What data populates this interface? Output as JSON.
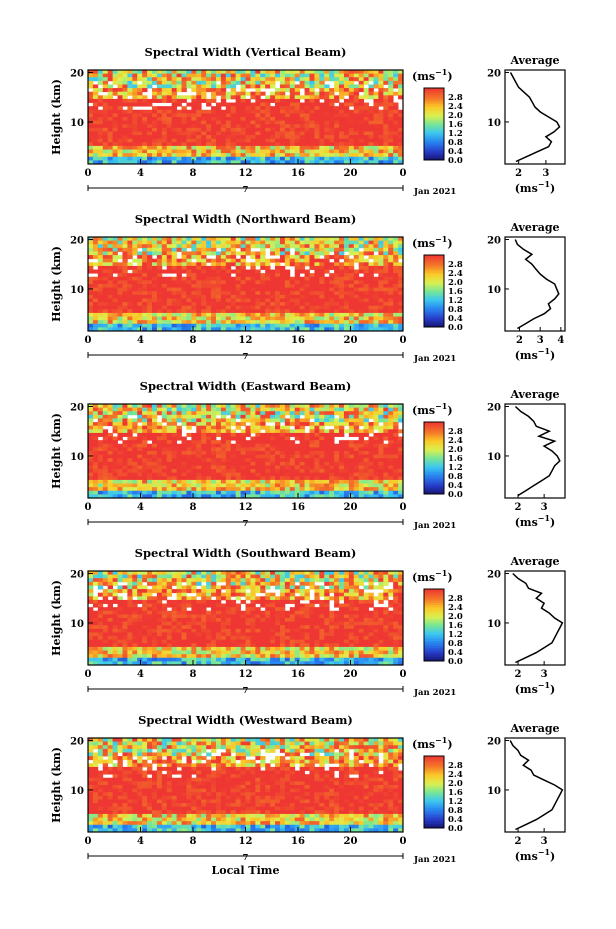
{
  "figure": {
    "ylabel": "Height (km)",
    "xlabel": "Local Time",
    "unit_label": "(ms",
    "unit_exp": "−1",
    "date_label": "Jan 2021",
    "day_label": "7",
    "avg_title": "Average"
  },
  "chart_data": [
    {
      "type": "heatmap",
      "title": "Spectral Width (Vertical Beam)",
      "xlabel": "Local Time",
      "ylabel": "Height (km)",
      "xlim": [
        0,
        24
      ],
      "ylim": [
        1.5,
        20.5
      ],
      "x_ticks": [
        "0",
        "4",
        "8",
        "12",
        "16",
        "20",
        "0"
      ],
      "y_ticks": [
        "10",
        "20"
      ],
      "colorbar": {
        "label": "(ms−1)",
        "range": [
          0,
          3.2
        ],
        "ticks": [
          "0.0",
          "0.4",
          "0.8",
          "1.2",
          "1.6",
          "2.0",
          "2.4",
          "2.8"
        ]
      },
      "average_profile": {
        "title": "Average",
        "xlabel": "(ms−1)",
        "x_ticks": [
          "2",
          "3"
        ],
        "xlim": [
          1.5,
          3.7
        ],
        "points": [
          [
            1.9,
            2
          ],
          [
            2.3,
            3
          ],
          [
            2.7,
            4
          ],
          [
            3.1,
            5
          ],
          [
            3.2,
            6
          ],
          [
            3.0,
            7
          ],
          [
            3.3,
            8
          ],
          [
            3.5,
            9
          ],
          [
            3.4,
            10
          ],
          [
            3.1,
            11
          ],
          [
            2.8,
            12
          ],
          [
            2.6,
            13
          ],
          [
            2.5,
            14
          ],
          [
            2.4,
            15
          ],
          [
            2.2,
            16
          ],
          [
            2.0,
            17
          ],
          [
            1.9,
            18
          ],
          [
            1.8,
            19
          ],
          [
            1.7,
            20
          ]
        ]
      }
    },
    {
      "type": "heatmap",
      "title": "Spectral Width (Northward Beam)",
      "xlabel": "Local Time",
      "ylabel": "Height (km)",
      "xlim": [
        0,
        24
      ],
      "ylim": [
        1.5,
        20.5
      ],
      "x_ticks": [
        "0",
        "4",
        "8",
        "12",
        "16",
        "20",
        "0"
      ],
      "y_ticks": [
        "10",
        "20"
      ],
      "colorbar": {
        "label": "(ms−1)",
        "range": [
          0,
          3.2
        ],
        "ticks": [
          "0.0",
          "0.4",
          "0.8",
          "1.2",
          "1.6",
          "2.0",
          "2.4",
          "2.8"
        ]
      },
      "average_profile": {
        "title": "Average",
        "xlabel": "(ms−1)",
        "x_ticks": [
          "2",
          "3",
          "4"
        ],
        "xlim": [
          1.3,
          4.2
        ],
        "points": [
          [
            1.9,
            2
          ],
          [
            2.3,
            3
          ],
          [
            2.7,
            4
          ],
          [
            3.2,
            5
          ],
          [
            3.5,
            6
          ],
          [
            3.4,
            7
          ],
          [
            3.7,
            8
          ],
          [
            3.9,
            9
          ],
          [
            3.8,
            10
          ],
          [
            3.7,
            11
          ],
          [
            3.3,
            12
          ],
          [
            3.0,
            13
          ],
          [
            2.8,
            14
          ],
          [
            2.6,
            15
          ],
          [
            2.3,
            16
          ],
          [
            2.6,
            17
          ],
          [
            2.2,
            18
          ],
          [
            1.9,
            19
          ],
          [
            1.8,
            20
          ]
        ]
      }
    },
    {
      "type": "heatmap",
      "title": "Spectral Width (Eastward Beam)",
      "xlabel": "Local Time",
      "ylabel": "Height (km)",
      "xlim": [
        0,
        24
      ],
      "ylim": [
        1.5,
        20.5
      ],
      "x_ticks": [
        "0",
        "4",
        "8",
        "12",
        "16",
        "20",
        "0"
      ],
      "y_ticks": [
        "10",
        "20"
      ],
      "colorbar": {
        "label": "(ms−1)",
        "range": [
          0,
          3.2
        ],
        "ticks": [
          "0.0",
          "0.4",
          "0.8",
          "1.2",
          "1.6",
          "2.0",
          "2.4",
          "2.8"
        ]
      },
      "average_profile": {
        "title": "Average",
        "xlabel": "(ms−1)",
        "x_ticks": [
          "2",
          "3"
        ],
        "xlim": [
          1.5,
          3.8
        ],
        "points": [
          [
            2.0,
            2
          ],
          [
            2.3,
            3
          ],
          [
            2.6,
            4
          ],
          [
            2.9,
            5
          ],
          [
            3.2,
            6
          ],
          [
            3.3,
            7
          ],
          [
            3.4,
            8
          ],
          [
            3.6,
            9
          ],
          [
            3.5,
            10
          ],
          [
            3.3,
            11
          ],
          [
            3.0,
            12
          ],
          [
            3.4,
            13
          ],
          [
            2.8,
            14
          ],
          [
            3.2,
            15
          ],
          [
            2.7,
            16
          ],
          [
            2.6,
            17
          ],
          [
            2.4,
            18
          ],
          [
            2.1,
            19
          ],
          [
            1.9,
            20
          ]
        ]
      }
    },
    {
      "type": "heatmap",
      "title": "Spectral Width (Southward Beam)",
      "xlabel": "Local Time",
      "ylabel": "Height (km)",
      "xlim": [
        0,
        24
      ],
      "ylim": [
        1.5,
        20.5
      ],
      "x_ticks": [
        "0",
        "4",
        "8",
        "12",
        "16",
        "20",
        "0"
      ],
      "y_ticks": [
        "10",
        "20"
      ],
      "colorbar": {
        "label": "(ms−1)",
        "range": [
          0,
          3.2
        ],
        "ticks": [
          "0.0",
          "0.4",
          "0.8",
          "1.2",
          "1.6",
          "2.0",
          "2.4",
          "2.8"
        ]
      },
      "average_profile": {
        "title": "Average",
        "xlabel": "(ms−1)",
        "x_ticks": [
          "2",
          "3"
        ],
        "xlim": [
          1.5,
          3.8
        ],
        "points": [
          [
            1.9,
            2
          ],
          [
            2.3,
            3
          ],
          [
            2.7,
            4
          ],
          [
            3.0,
            5
          ],
          [
            3.3,
            6
          ],
          [
            3.4,
            7
          ],
          [
            3.5,
            8
          ],
          [
            3.6,
            9
          ],
          [
            3.7,
            10
          ],
          [
            3.4,
            11
          ],
          [
            3.2,
            12
          ],
          [
            2.9,
            13
          ],
          [
            3.0,
            14
          ],
          [
            2.7,
            15
          ],
          [
            2.9,
            16
          ],
          [
            2.4,
            17
          ],
          [
            2.3,
            18
          ],
          [
            2.0,
            19
          ],
          [
            1.8,
            20
          ]
        ]
      }
    },
    {
      "type": "heatmap",
      "title": "Spectral Width (Westward Beam)",
      "xlabel": "Local Time",
      "ylabel": "Height (km)",
      "xlim": [
        0,
        24
      ],
      "ylim": [
        1.5,
        20.5
      ],
      "x_ticks": [
        "0",
        "4",
        "8",
        "12",
        "16",
        "20",
        "0"
      ],
      "y_ticks": [
        "10",
        "20"
      ],
      "colorbar": {
        "label": "(ms−1)",
        "range": [
          0,
          3.2
        ],
        "ticks": [
          "0.0",
          "0.4",
          "0.8",
          "1.2",
          "1.6",
          "2.0",
          "2.4",
          "2.8"
        ]
      },
      "average_profile": {
        "title": "Average",
        "xlabel": "(ms−1)",
        "x_ticks": [
          "2",
          "3"
        ],
        "xlim": [
          1.5,
          3.8
        ],
        "points": [
          [
            1.9,
            2
          ],
          [
            2.3,
            3
          ],
          [
            2.7,
            4
          ],
          [
            3.0,
            5
          ],
          [
            3.3,
            6
          ],
          [
            3.4,
            7
          ],
          [
            3.5,
            8
          ],
          [
            3.6,
            9
          ],
          [
            3.7,
            10
          ],
          [
            3.4,
            11
          ],
          [
            3.0,
            12
          ],
          [
            2.6,
            13
          ],
          [
            2.5,
            14
          ],
          [
            2.2,
            15
          ],
          [
            2.4,
            16
          ],
          [
            2.1,
            17
          ],
          [
            2.0,
            18
          ],
          [
            1.8,
            19
          ],
          [
            1.7,
            20
          ]
        ]
      }
    }
  ]
}
